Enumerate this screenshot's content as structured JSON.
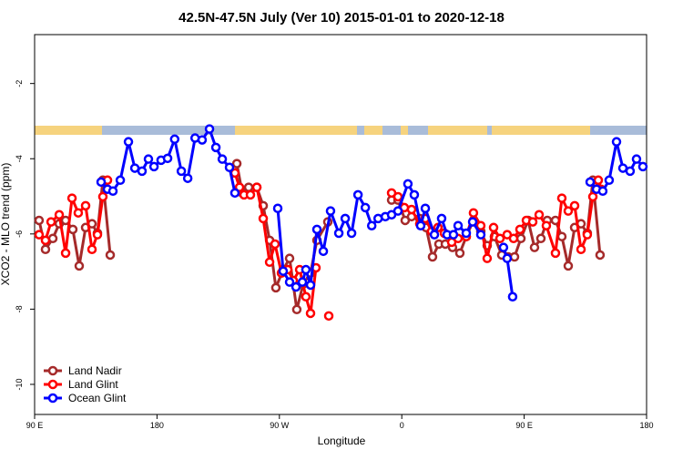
{
  "chart_data": {
    "type": "line",
    "title": "42.5N-47.5N July (Ver 10)   2015-01-01 to 2020-12-18",
    "x_label": "Longitude",
    "y_label": "XCO2 - MLO trend (ppm)",
    "xlim": [
      90,
      540
    ],
    "ylim": [
      -10.8,
      -0.7
    ],
    "xticks": [
      {
        "value": 90,
        "label": "90 E"
      },
      180,
      {
        "value": 270,
        "label": "90 W"
      },
      {
        "value": 360,
        "label": "0"
      },
      {
        "value": 450,
        "label": "90 E"
      },
      {
        "value": 540,
        "label": "180"
      }
    ],
    "yticks": [
      -10,
      -8,
      -6,
      -4,
      -2
    ],
    "legend": "bottom-left",
    "series": [
      {
        "name": "Land Nadir",
        "color": "#a52a2a",
        "x": [
          93.3,
          98.0,
          103.4,
          108.1,
          112.8,
          118.1,
          122.8,
          127.5,
          132.2,
          136.2,
          140.2,
          145.6,
          null,
          238.7,
          242.7,
          247.4,
          253.4,
          258.1,
          262.8,
          267.4,
          272.8,
          277.5,
          282.8,
          287.5,
          292.9,
          297.6,
          305.6,
          null,
          352.5,
          357.2,
          362.5,
          367.2,
          373.2,
          377.9,
          382.6,
          387.3,
          392.0,
          397.3,
          402.7,
          407.4,
          412.7,
          418.1,
          422.8,
          428.1,
          433.5,
          438.2,
          442.9,
          447.6,
          452.9,
          457.6,
          462.3,
          467.0,
          473.0,
          477.7,
          482.4,
          487.1,
          491.8,
          496.4,
          500.5,
          505.8
        ],
        "values": [
          -5.64,
          -6.41,
          -6.12,
          -5.73,
          -5.64,
          -5.88,
          -6.85,
          -5.83,
          -5.73,
          -5.98,
          -4.57,
          -6.56,
          null,
          -4.13,
          -4.91,
          -4.76,
          -4.76,
          -5.25,
          -6.17,
          -7.43,
          -6.95,
          -6.65,
          -8.01,
          -7.33,
          -7.04,
          -6.17,
          -5.68,
          null,
          -5.1,
          -5.1,
          -5.64,
          -5.54,
          -5.59,
          -5.83,
          -6.61,
          -6.27,
          -6.27,
          -6.36,
          -6.51,
          -6.07,
          -5.64,
          -5.93,
          -6.31,
          -6.07,
          -6.56,
          -6.61,
          -6.61,
          -6.12,
          -5.64,
          -6.36,
          -6.12,
          -5.64,
          -5.64,
          -6.07,
          -6.85,
          -5.83,
          -5.73,
          -5.98,
          -4.57,
          -6.56
        ]
      },
      {
        "name": "Land Glint",
        "color": "#ff0000",
        "x": [
          93.3,
          98.0,
          102.1,
          108.1,
          112.8,
          117.5,
          122.1,
          127.5,
          132.2,
          136.2,
          140.2,
          143.6,
          null,
          237.3,
          240.7,
          244.0,
          248.7,
          253.4,
          258.1,
          262.8,
          266.8,
          271.5,
          276.2,
          280.2,
          284.9,
          289.5,
          292.9,
          296.9,
          null,
          306.3,
          null,
          352.5,
          357.2,
          361.9,
          367.2,
          373.2,
          377.3,
          381.9,
          386.6,
          391.3,
          396.7,
          401.4,
          407.4,
          412.7,
          418.1,
          422.8,
          427.5,
          432.2,
          437.5,
          442.2,
          446.9,
          451.6,
          456.3,
          461.0,
          466.3,
          473.0,
          477.7,
          482.4,
          487.1,
          491.8,
          496.4,
          500.5,
          504.5,
          506.5
        ],
        "values": [
          -6.02,
          -6.17,
          -5.68,
          -5.49,
          -6.51,
          -5.05,
          -5.44,
          -5.25,
          -6.41,
          -6.02,
          -5.01,
          -4.57,
          null,
          -4.38,
          -4.76,
          -4.96,
          -4.96,
          -4.76,
          -5.59,
          -6.75,
          -6.27,
          -7.04,
          -6.95,
          -7.24,
          -6.95,
          -7.67,
          -8.11,
          -6.9,
          null,
          -8.18,
          null,
          -4.91,
          -5.01,
          -5.3,
          -5.35,
          -5.73,
          -5.59,
          -5.93,
          -5.83,
          -5.98,
          -6.22,
          -6.12,
          -6.07,
          -5.44,
          -5.78,
          -6.65,
          -5.83,
          -6.12,
          -6.02,
          -6.12,
          -5.88,
          -5.64,
          -5.68,
          -5.49,
          -5.78,
          -6.51,
          -5.05,
          -5.39,
          -5.25,
          -6.41,
          -6.02,
          -5.01,
          -4.57,
          -4.81
        ]
      },
      {
        "name": "Ocean Glint",
        "color": "#0000ff",
        "x": [
          138.9,
          143.6,
          147.6,
          153.0,
          159.0,
          163.7,
          169.0,
          173.7,
          177.8,
          183.0,
          187.8,
          193.0,
          197.9,
          202.6,
          208.0,
          213.2,
          218.6,
          223.3,
          228.0,
          233.3,
          237.3,
          null,
          268.8,
          272.8,
          277.5,
          282.2,
          286.9,
          289.5,
          292.9,
          297.6,
          302.3,
          307.6,
          313.7,
          318.4,
          323.1,
          327.8,
          333.2,
          337.9,
          342.6,
          347.9,
          352.5,
          357.2,
          364.5,
          369.2,
          373.9,
          377.3,
          384.0,
          389.3,
          393.3,
          398.0,
          401.4,
          407.4,
          412.1,
          418.1,
          null,
          434.8,
          437.5,
          441.5,
          null,
          498.5,
          503.2,
          507.8,
          512.5,
          517.9,
          522.6,
          527.9,
          532.6,
          537.3
        ],
        "values": [
          -4.62,
          -4.81,
          -4.86,
          -4.57,
          -3.55,
          -4.25,
          -4.33,
          -4.01,
          -4.21,
          -4.04,
          -3.99,
          -3.48,
          -4.33,
          -4.52,
          -3.45,
          -3.5,
          -3.21,
          -3.7,
          -4.01,
          -4.23,
          -4.91,
          null,
          -5.32,
          -6.99,
          -7.28,
          -7.41,
          -7.28,
          -6.95,
          -7.36,
          -5.88,
          -6.46,
          -5.39,
          -5.98,
          -5.59,
          -5.98,
          -4.96,
          -5.3,
          -5.78,
          -5.59,
          -5.54,
          -5.49,
          -5.39,
          -4.67,
          -4.96,
          -5.78,
          -5.32,
          -6.02,
          -5.59,
          -6.02,
          -6.02,
          -5.78,
          -5.98,
          -5.68,
          -6.02,
          null,
          -6.36,
          -6.65,
          -7.67,
          null,
          -4.62,
          -4.81,
          -4.86,
          -4.57,
          -3.55,
          -4.25,
          -4.33,
          -4.01,
          -4.21
        ]
      }
    ]
  }
}
